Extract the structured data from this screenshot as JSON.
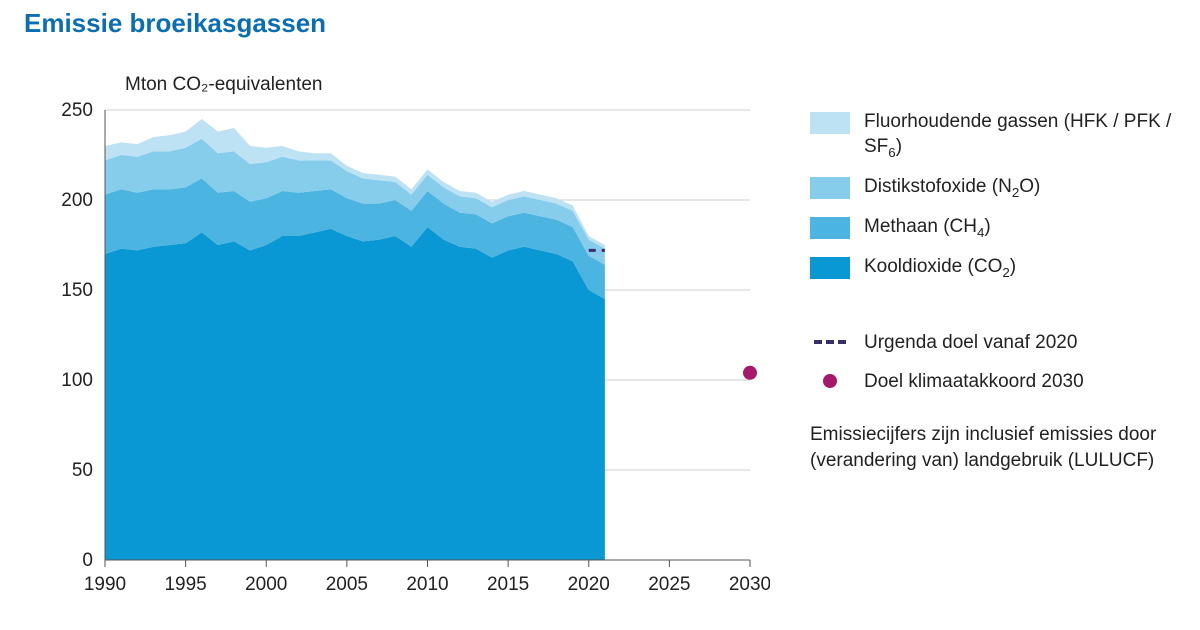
{
  "title": {
    "text": "Emissie broeikasgassen",
    "color": "#0a6eb4",
    "fontsize": 26
  },
  "chart": {
    "type": "stacked-area",
    "y_axis_title": "Mton CO₂-equivalenten",
    "y_axis_title_fontsize": 19,
    "background_color": "#ffffff",
    "grid_color": "#cfcfcf",
    "axis_color": "#555555",
    "tick_font_color": "#222222",
    "tick_fontsize": 19,
    "ylim": [
      0,
      250
    ],
    "ytick_step": 50,
    "xlim": [
      1990,
      2030
    ],
    "xtick_step": 5,
    "xlabels": [
      "1990",
      "1995",
      "2000",
      "2005",
      "2010",
      "2015",
      "2020",
      "2025",
      "2030"
    ],
    "years": [
      1990,
      1991,
      1992,
      1993,
      1994,
      1995,
      1996,
      1997,
      1998,
      1999,
      2000,
      2001,
      2002,
      2003,
      2004,
      2005,
      2006,
      2007,
      2008,
      2009,
      2010,
      2011,
      2012,
      2013,
      2014,
      2015,
      2016,
      2017,
      2018,
      2019,
      2020,
      2021
    ],
    "series": [
      {
        "key": "co2",
        "label_html": "Kooldioxide (CO<sub>2</sub>)",
        "color": "#0a98d4",
        "values": [
          170,
          173,
          172,
          174,
          175,
          176,
          182,
          175,
          177,
          172,
          175,
          180,
          180,
          182,
          184,
          180,
          177,
          178,
          180,
          174,
          185,
          178,
          174,
          173,
          168,
          172,
          174,
          172,
          170,
          166,
          150,
          145
        ]
      },
      {
        "key": "ch4",
        "label_html": "Methaan (CH<sub>4</sub>)",
        "color": "#4cb4e0",
        "values": [
          33,
          33,
          32,
          32,
          31,
          31,
          30,
          29,
          28,
          27,
          26,
          25,
          24,
          23,
          22,
          21,
          21,
          20,
          20,
          20,
          20,
          20,
          19,
          19,
          19,
          19,
          19,
          19,
          19,
          19,
          19,
          19
        ]
      },
      {
        "key": "n2o",
        "label_html": "Distikstofoxide (N<sub>2</sub>O)",
        "color": "#85cdeb",
        "values": [
          19,
          19,
          20,
          21,
          21,
          22,
          22,
          22,
          22,
          21,
          20,
          19,
          18,
          17,
          16,
          15,
          14,
          13,
          10,
          9,
          9,
          9,
          9,
          9,
          9,
          9,
          9,
          9,
          9,
          9,
          9,
          9
        ]
      },
      {
        "key": "fgas",
        "label_html": "Fluorhoudende gassen (HFK / PFK / SF<sub>6</sub>)",
        "color": "#bde2f4",
        "values": [
          8,
          7,
          7,
          8,
          9,
          9,
          11,
          12,
          13,
          10,
          8,
          6,
          5,
          4,
          4,
          3,
          3,
          3,
          3,
          3,
          3,
          3,
          3,
          3,
          3,
          3,
          3,
          3,
          3,
          3,
          2,
          2
        ]
      }
    ],
    "targets": {
      "urgenda": {
        "label": "Urgenda doel vanaf 2020",
        "color": "#3a2d6b",
        "x_start": 2020,
        "x_end": 2021,
        "y": 172,
        "dash": "7,6",
        "width": 3
      },
      "klimaat2030": {
        "label": "Doel klimaatakkoord 2030",
        "color": "#a4196a",
        "x": 2030,
        "y": 104,
        "radius": 7
      }
    }
  },
  "legend": {
    "area_order": [
      "fgas",
      "n2o",
      "ch4",
      "co2"
    ],
    "note": "Emissiecijfers zijn inclusief emissies door (verandering van) landgebruik (LULUCF)"
  }
}
